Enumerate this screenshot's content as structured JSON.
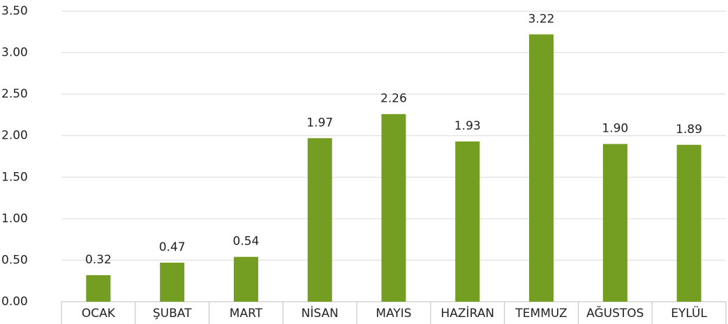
{
  "chart_data": {
    "type": "bar",
    "categories": [
      "OCAK",
      "ŞUBAT",
      "MART",
      "NİSAN",
      "MAYIS",
      "HAZİRAN",
      "TEMMUZ",
      "AĞUSTOS",
      "EYLÜL"
    ],
    "values": [
      0.32,
      0.47,
      0.54,
      1.97,
      2.26,
      1.93,
      3.22,
      1.9,
      1.89
    ],
    "value_labels": [
      "0.32",
      "0.47",
      "0.54",
      "1.97",
      "2.26",
      "1.93",
      "3.22",
      "1.90",
      "1.89"
    ],
    "color": "#739e21",
    "ylim": [
      0,
      3.5
    ],
    "yticks": [
      {
        "value": 0,
        "label": "0.00"
      },
      {
        "value": 0.5,
        "label": "0.50"
      },
      {
        "value": 1,
        "label": "1.00"
      },
      {
        "value": 1.5,
        "label": "1.50"
      },
      {
        "value": 2,
        "label": "2.00"
      },
      {
        "value": 2.5,
        "label": "2.50"
      },
      {
        "value": 3,
        "label": "3.00"
      },
      {
        "value": 3.5,
        "label": "3.50"
      }
    ],
    "grid": true
  }
}
